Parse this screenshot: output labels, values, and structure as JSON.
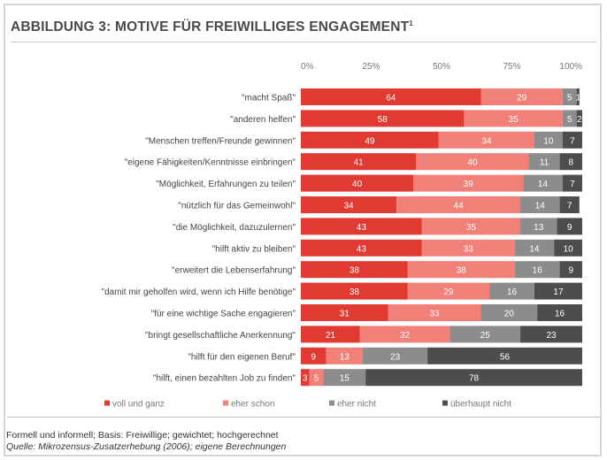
{
  "title": "ABBILDUNG 3: MOTIVE FÜR FREIWILLIGES ENGAGEMENT",
  "title_sup": "1",
  "footnote": "Formell und informell; Basis: Freiwillige; gewichtet; hochgerechnet",
  "source": "Quelle: Mikrozensus-Zusatzerhebung (2006); eigene Berechnungen",
  "colors": {
    "voll_und_ganz": "#e03a32",
    "eher_schon": "#f08078",
    "eher_nicht": "#8c8c8c",
    "ueberhaupt_nicht": "#4d4d4d"
  },
  "chart_data": {
    "type": "bar",
    "orientation": "horizontal",
    "stacked": true,
    "xlim": [
      0,
      100
    ],
    "x_ticks": [
      "0%",
      "25%",
      "50%",
      "75%",
      "100%"
    ],
    "legend_position": "bottom",
    "categories": [
      "\"macht Spaß\"",
      "\"anderen helfen\"",
      "\"Menschen treffen/Freunde gewinnen\"",
      "\"eigene Fähigkeiten/Kenntnisse einbringen\"",
      "\"Möglichkeit, Erfahrungen zu teilen\"",
      "\"nützlich für das Gemeinwohl\"",
      "\"die Möglichkeit, dazuzulernen\"",
      "\"hilft aktiv zu bleiben\"",
      "\"erweitert die Lebenserfahrung\"",
      "\"damit mir geholfen wird, wenn ich Hilfe benötige\"",
      "\"für eine wichtige Sache engagieren\"",
      "\"bringt gesellschaftliche Anerkennung\"",
      "\"hilft für den eigenen Beruf\"",
      "\"hilft, einen bezahlten Job zu finden\""
    ],
    "series": [
      {
        "name": "voll und ganz",
        "color": "#e03a32",
        "values": [
          64,
          58,
          49,
          41,
          40,
          34,
          43,
          43,
          38,
          38,
          31,
          21,
          9,
          3
        ]
      },
      {
        "name": "eher schon",
        "color": "#f08078",
        "values": [
          29,
          35,
          34,
          40,
          39,
          44,
          35,
          33,
          38,
          29,
          33,
          32,
          13,
          5
        ]
      },
      {
        "name": "eher nicht",
        "color": "#8c8c8c",
        "values": [
          5,
          5,
          10,
          11,
          14,
          14,
          13,
          14,
          16,
          16,
          20,
          25,
          23,
          15
        ]
      },
      {
        "name": "überhaupt nicht",
        "color": "#4d4d4d",
        "values": [
          1,
          2,
          7,
          8,
          7,
          7,
          9,
          10,
          9,
          17,
          16,
          23,
          56,
          78
        ]
      }
    ]
  }
}
